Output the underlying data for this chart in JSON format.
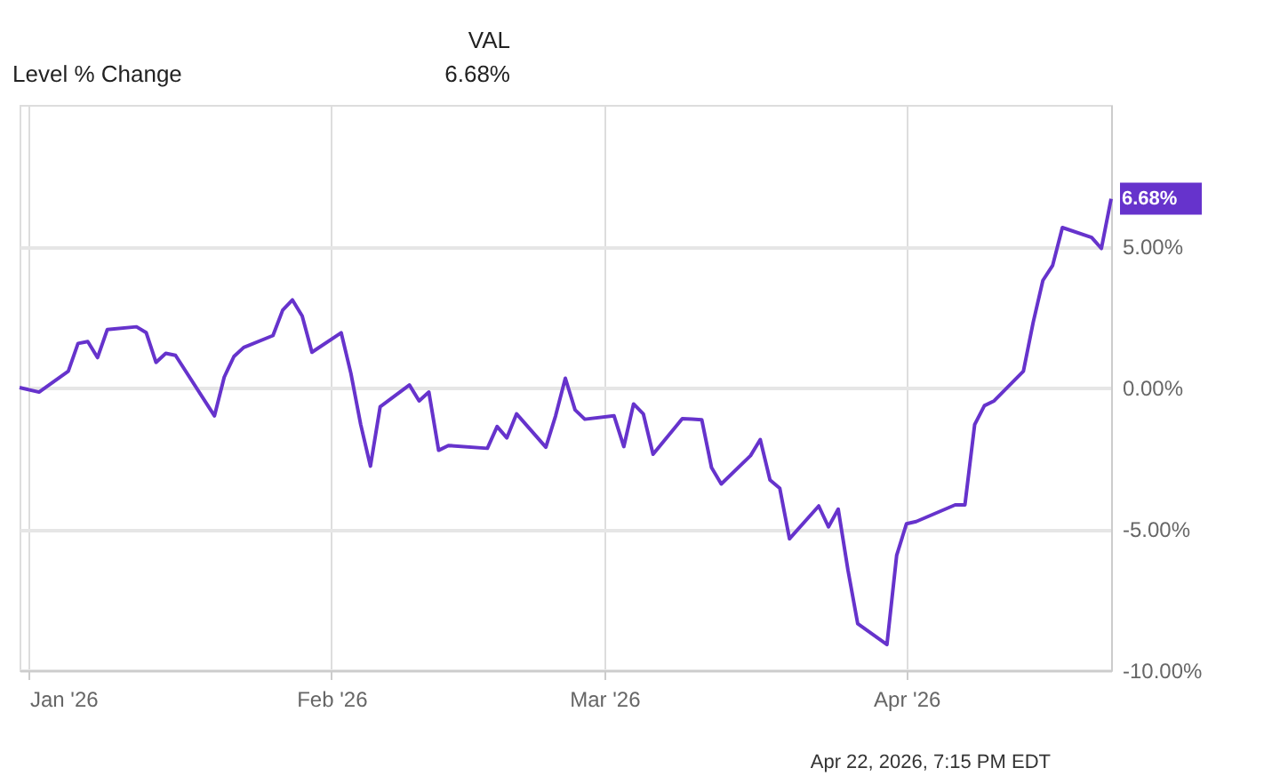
{
  "chart_data": {
    "type": "line",
    "legend": "top left",
    "legend_title": "VAL",
    "grid": true,
    "marker": "none",
    "line_style": "solid",
    "annotations": [
      "Apr 22, 2026, 7:15 PM EDT"
    ],
    "xlim": [
      "2025-12-31",
      "2026-04-22"
    ],
    "xticks": [
      {
        "value": "2026-01-01",
        "label": "Jan '26"
      },
      {
        "value": "2026-02-01",
        "label": "Feb '26"
      },
      {
        "value": "2026-03-01",
        "label": "Mar '26"
      },
      {
        "value": "2026-04-01",
        "label": "Apr '26"
      }
    ],
    "ylim": [
      -10,
      10
    ],
    "yticks": [
      {
        "value": -10,
        "label": "-10.00%"
      },
      {
        "value": -5,
        "label": "-5.00%"
      },
      {
        "value": 0,
        "label": "0.00%"
      },
      {
        "value": 5,
        "label": "5.00%"
      }
    ],
    "x": [
      "2025-12-31",
      "2026-01-02",
      "2026-01-05",
      "2026-01-06",
      "2026-01-07",
      "2026-01-08",
      "2026-01-09",
      "2026-01-12",
      "2026-01-13",
      "2026-01-14",
      "2026-01-15",
      "2026-01-16",
      "2026-01-20",
      "2026-01-21",
      "2026-01-22",
      "2026-01-23",
      "2026-01-26",
      "2026-01-27",
      "2026-01-28",
      "2026-01-29",
      "2026-01-30",
      "2026-02-02",
      "2026-02-03",
      "2026-02-04",
      "2026-02-05",
      "2026-02-06",
      "2026-02-09",
      "2026-02-10",
      "2026-02-11",
      "2026-02-12",
      "2026-02-13",
      "2026-02-17",
      "2026-02-18",
      "2026-02-19",
      "2026-02-20",
      "2026-02-23",
      "2026-02-24",
      "2026-02-25",
      "2026-02-26",
      "2026-02-27",
      "2026-03-02",
      "2026-03-03",
      "2026-03-04",
      "2026-03-05",
      "2026-03-06",
      "2026-03-09",
      "2026-03-10",
      "2026-03-11",
      "2026-03-12",
      "2026-03-13",
      "2026-03-16",
      "2026-03-17",
      "2026-03-18",
      "2026-03-19",
      "2026-03-20",
      "2026-03-23",
      "2026-03-24",
      "2026-03-25",
      "2026-03-26",
      "2026-03-27",
      "2026-03-30",
      "2026-03-31",
      "2026-04-01",
      "2026-04-02",
      "2026-04-06",
      "2026-04-07",
      "2026-04-08",
      "2026-04-09",
      "2026-04-10",
      "2026-04-13",
      "2026-04-14",
      "2026-04-15",
      "2026-04-16",
      "2026-04-17",
      "2026-04-20",
      "2026-04-21",
      "2026-04-22"
    ],
    "series": [
      {
        "name": "Level % Change",
        "color": "#6633cc",
        "values": [
          0.0,
          -0.16,
          0.58,
          1.56,
          1.63,
          1.06,
          2.05,
          2.15,
          1.94,
          0.89,
          1.21,
          1.14,
          -1.0,
          0.37,
          1.1,
          1.42,
          1.84,
          2.74,
          3.1,
          2.53,
          1.25,
          1.94,
          0.5,
          -1.3,
          -2.78,
          -0.68,
          0.09,
          -0.47,
          -0.16,
          -2.22,
          -2.05,
          -2.15,
          -1.38,
          -1.78,
          -0.93,
          -2.11,
          -1.0,
          0.33,
          -0.79,
          -1.12,
          -1.0,
          -2.09,
          -0.58,
          -0.93,
          -2.36,
          -1.1,
          -1.12,
          -1.14,
          -2.83,
          -3.41,
          -2.41,
          -1.84,
          -3.27,
          -3.56,
          -5.35,
          -4.19,
          -4.93,
          -4.3,
          -6.46,
          -8.35,
          -9.09,
          -5.93,
          -4.82,
          -4.74,
          -4.15,
          -4.15,
          -1.31,
          -0.64,
          -0.47,
          0.58,
          2.3,
          3.79,
          4.32,
          5.66,
          5.31,
          4.92,
          6.68
        ],
        "value_labels": [
          null,
          null,
          null,
          null,
          null,
          null,
          null,
          null,
          null,
          null,
          null,
          null,
          null,
          null,
          null,
          null,
          null,
          null,
          null,
          null,
          null,
          null,
          null,
          null,
          null,
          null,
          null,
          null,
          null,
          null,
          null,
          null,
          null,
          null,
          null,
          null,
          null,
          null,
          null,
          null,
          null,
          null,
          null,
          null,
          null,
          null,
          null,
          null,
          null,
          null,
          null,
          null,
          null,
          null,
          null,
          null,
          null,
          null,
          null,
          null,
          null,
          null,
          null,
          null,
          null,
          null,
          null,
          null,
          null,
          null,
          null,
          null,
          null,
          null,
          null,
          null,
          "6.68%"
        ]
      }
    ]
  }
}
